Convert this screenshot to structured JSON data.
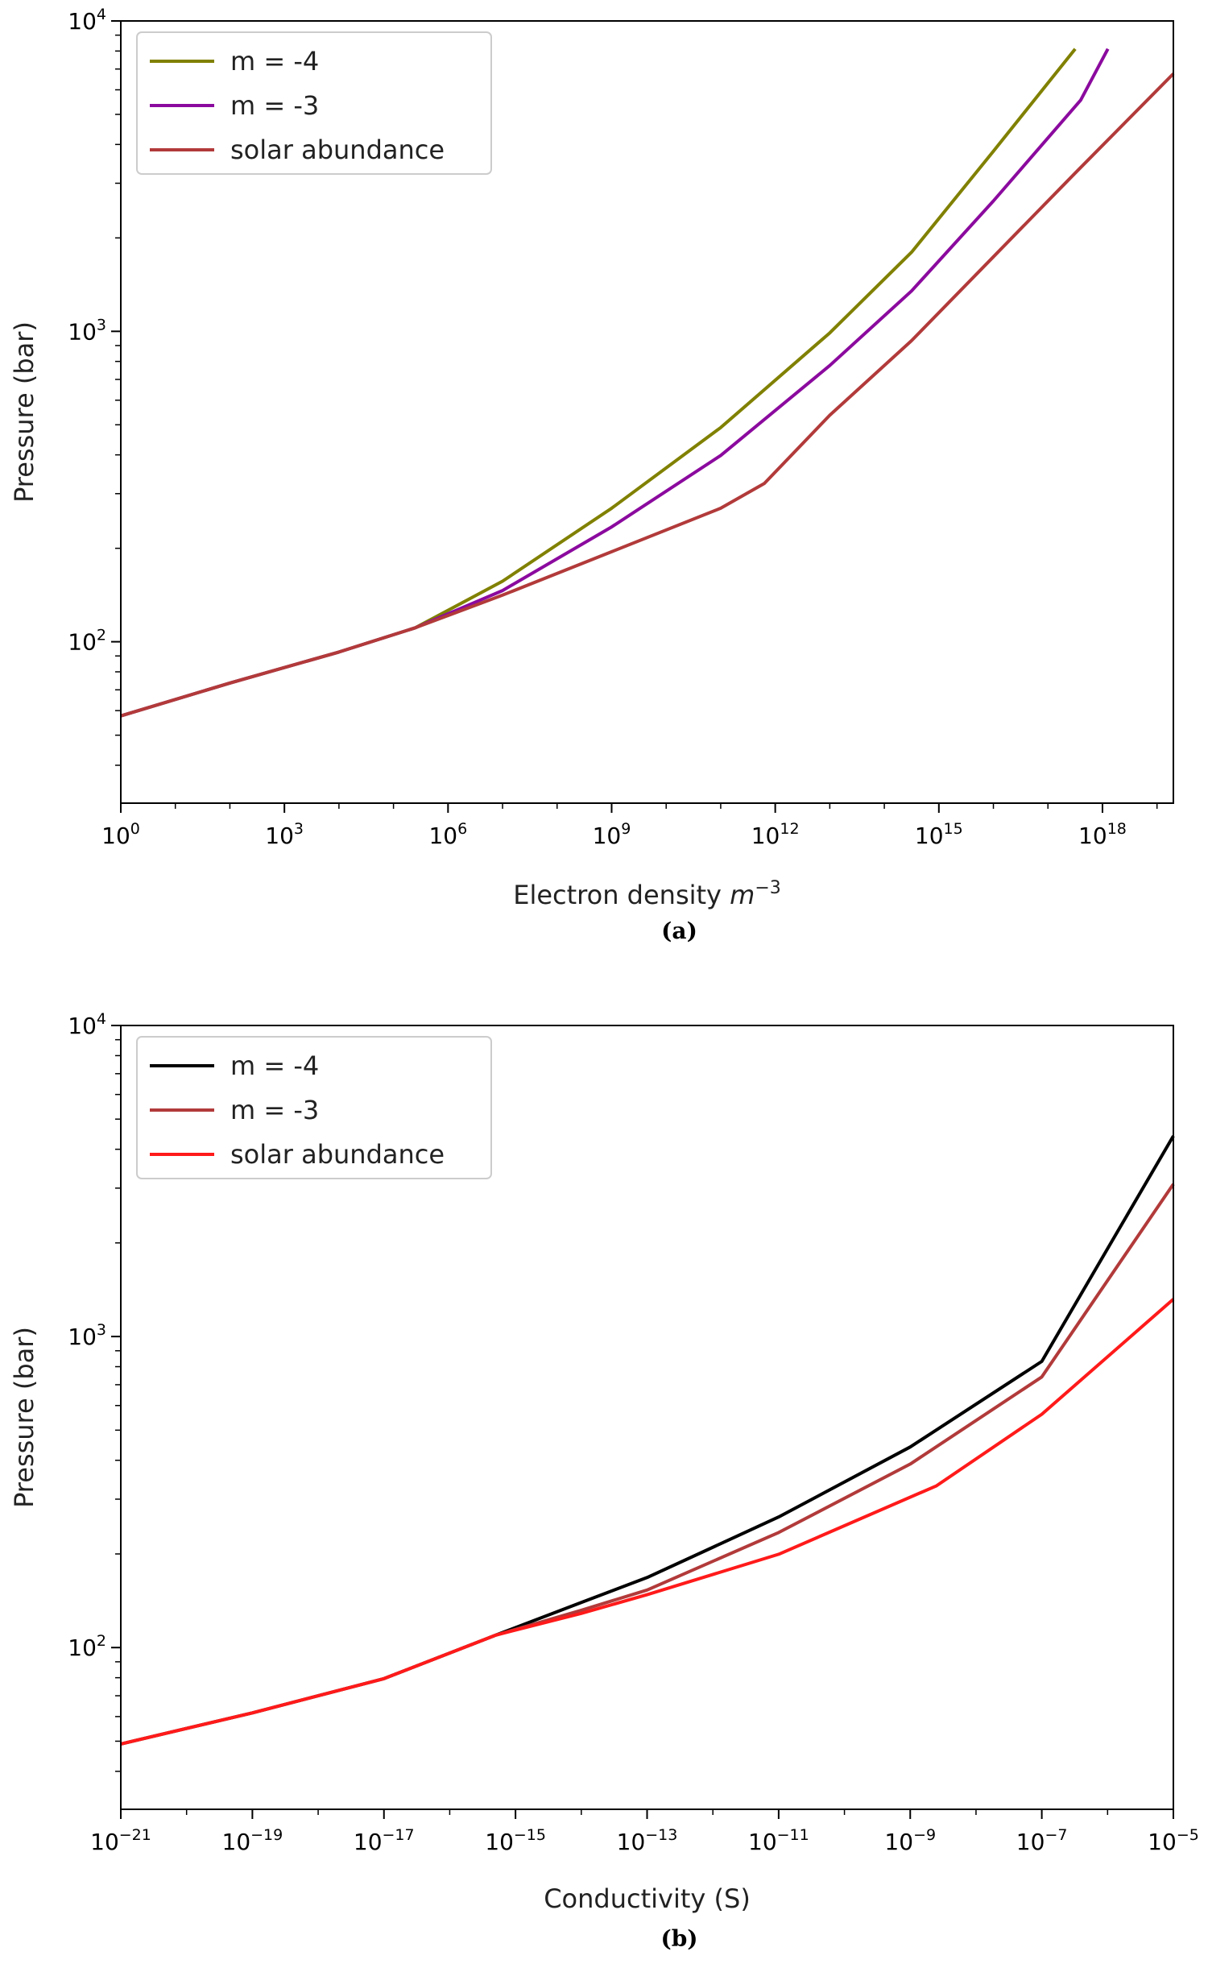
{
  "chart_data": [
    {
      "type": "line",
      "panel": "a",
      "caption": "(a)",
      "xscale": "log",
      "yscale": "log",
      "xlabel": "Electron density",
      "xlabel_unit": "m",
      "xlabel_unit_exp": "−3",
      "ylabel": "Pressure (bar)",
      "xlim_exp": [
        0,
        19.3
      ],
      "ylim_exp": [
        1.48,
        4.0
      ],
      "x_ticks": [
        {
          "base": "10",
          "exp": "0",
          "v": 0
        },
        {
          "base": "10",
          "exp": "3",
          "v": 3
        },
        {
          "base": "10",
          "exp": "6",
          "v": 6
        },
        {
          "base": "10",
          "exp": "9",
          "v": 9
        },
        {
          "base": "10",
          "exp": "12",
          "v": 12
        },
        {
          "base": "10",
          "exp": "15",
          "v": 15
        },
        {
          "base": "10",
          "exp": "18",
          "v": 18
        }
      ],
      "y_ticks": [
        {
          "base": "10",
          "exp": "2",
          "v": 2
        },
        {
          "base": "10",
          "exp": "3",
          "v": 3
        },
        {
          "base": "10",
          "exp": "4",
          "v": 4
        }
      ],
      "legend_position": "upper-left",
      "series": [
        {
          "name": "m = -4",
          "color": "#808000",
          "x_exp": [
            0,
            2,
            4,
            5.4,
            7,
            9,
            11,
            13,
            14.5,
            16,
            17.5
          ],
          "y_exp": [
            1.761,
            1.867,
            1.967,
            2.045,
            2.195,
            2.43,
            2.69,
            2.995,
            3.255,
            3.58,
            3.91
          ]
        },
        {
          "name": "m = -3",
          "color": "#8b0a9e",
          "x_exp": [
            0,
            2,
            4,
            5.4,
            7,
            9,
            11,
            13,
            14.5,
            16,
            17.6,
            18.1
          ],
          "y_exp": [
            1.761,
            1.867,
            1.967,
            2.045,
            2.165,
            2.37,
            2.6,
            2.89,
            3.13,
            3.42,
            3.745,
            3.91
          ]
        },
        {
          "name": "solar abundance",
          "color": "#b23a3a",
          "x_exp": [
            0,
            2,
            4,
            5.4,
            7,
            9,
            11,
            11.8,
            13,
            14.5,
            16,
            17.5,
            19.3
          ],
          "y_exp": [
            1.761,
            1.867,
            1.967,
            2.045,
            2.15,
            2.29,
            2.43,
            2.51,
            2.73,
            2.97,
            3.24,
            3.51,
            3.83
          ]
        }
      ]
    },
    {
      "type": "line",
      "panel": "b",
      "caption": "(b)",
      "xscale": "log",
      "yscale": "log",
      "xlabel": "Conductivity (S)",
      "ylabel": "Pressure (bar)",
      "xlim_exp": [
        -21,
        -5
      ],
      "ylim_exp": [
        1.48,
        4.0
      ],
      "x_ticks": [
        {
          "base": "10",
          "exp": "−21",
          "v": -21
        },
        {
          "base": "10",
          "exp": "−19",
          "v": -19
        },
        {
          "base": "10",
          "exp": "−17",
          "v": -17
        },
        {
          "base": "10",
          "exp": "−15",
          "v": -15
        },
        {
          "base": "10",
          "exp": "−13",
          "v": -13
        },
        {
          "base": "10",
          "exp": "−11",
          "v": -11
        },
        {
          "base": "10",
          "exp": "−9",
          "v": -9
        },
        {
          "base": "10",
          "exp": "−7",
          "v": -7
        },
        {
          "base": "10",
          "exp": "−5",
          "v": -5
        }
      ],
      "y_ticks": [
        {
          "base": "10",
          "exp": "2",
          "v": 2
        },
        {
          "base": "10",
          "exp": "3",
          "v": 3
        },
        {
          "base": "10",
          "exp": "4",
          "v": 4
        }
      ],
      "legend_position": "upper-left",
      "series": [
        {
          "name": "m = -4",
          "color": "#000000",
          "x_exp": [
            -21,
            -19,
            -17,
            -15.3,
            -14,
            -13,
            -11,
            -9,
            -7,
            -5
          ],
          "y_exp": [
            1.69,
            1.79,
            1.9,
            2.04,
            2.145,
            2.225,
            2.42,
            2.645,
            2.92,
            3.645
          ]
        },
        {
          "name": "m = -3",
          "color": "#b23a3a",
          "x_exp": [
            -21,
            -19,
            -17,
            -15.3,
            -14,
            -13,
            -11,
            -9,
            -7,
            -5
          ],
          "y_exp": [
            1.69,
            1.79,
            1.9,
            2.04,
            2.12,
            2.185,
            2.37,
            2.59,
            2.87,
            3.49
          ]
        },
        {
          "name": "solar abundance",
          "color": "#ff1a1a",
          "x_exp": [
            -21,
            -19,
            -17,
            -15.3,
            -14,
            -13,
            -11,
            -8.6,
            -7,
            -5
          ],
          "y_exp": [
            1.69,
            1.79,
            1.9,
            2.04,
            2.11,
            2.17,
            2.3,
            2.52,
            2.75,
            3.12
          ]
        }
      ]
    }
  ]
}
